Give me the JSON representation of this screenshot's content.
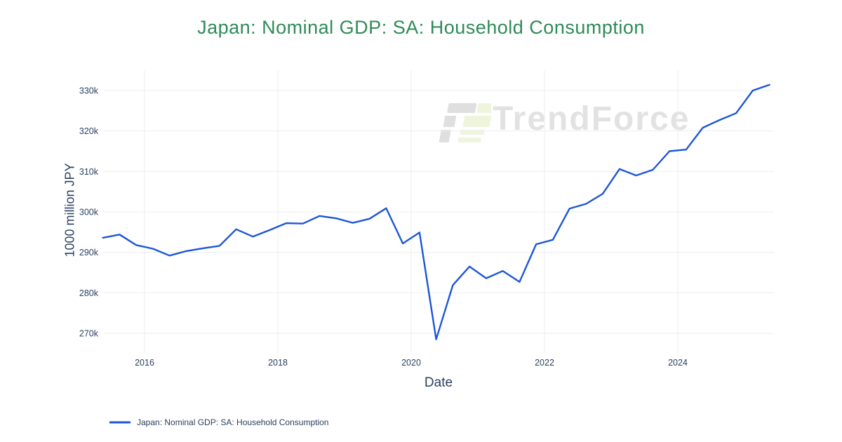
{
  "watermark": {
    "text": "TrendForce"
  },
  "chart_data": {
    "type": "line",
    "title": "Japan: Nominal GDP: SA: Household Consumption",
    "xlabel": "Date",
    "ylabel": "1000 million JPY",
    "legend_position": "bottom-left",
    "grid": true,
    "x_ticks": [
      {
        "year": 2016,
        "label": "2016"
      },
      {
        "year": 2018,
        "label": "2018"
      },
      {
        "year": 2020,
        "label": "2020"
      },
      {
        "year": 2022,
        "label": "2022"
      },
      {
        "year": 2024,
        "label": "2024"
      }
    ],
    "y_ticks": [
      {
        "value": 270000,
        "label": "270k"
      },
      {
        "value": 280000,
        "label": "280k"
      },
      {
        "value": 290000,
        "label": "290k"
      },
      {
        "value": 300000,
        "label": "300k"
      },
      {
        "value": 310000,
        "label": "310k"
      },
      {
        "value": 320000,
        "label": "320k"
      },
      {
        "value": 330000,
        "label": "330k"
      }
    ],
    "ylim": [
      265500,
      335000
    ],
    "series": [
      {
        "name": "Japan: Nominal GDP: SA: Household Consumption",
        "color": "#1c57d4",
        "categories": [
          "2015-Q2",
          "2015-Q3",
          "2015-Q4",
          "2016-Q1",
          "2016-Q2",
          "2016-Q3",
          "2016-Q4",
          "2017-Q1",
          "2017-Q2",
          "2017-Q3",
          "2017-Q4",
          "2018-Q1",
          "2018-Q2",
          "2018-Q3",
          "2018-Q4",
          "2019-Q1",
          "2019-Q2",
          "2019-Q3",
          "2019-Q4",
          "2020-Q1",
          "2020-Q2",
          "2020-Q3",
          "2020-Q4",
          "2021-Q1",
          "2021-Q2",
          "2021-Q3",
          "2021-Q4",
          "2022-Q1",
          "2022-Q2",
          "2022-Q3",
          "2022-Q4",
          "2023-Q1",
          "2023-Q2",
          "2023-Q3",
          "2023-Q4",
          "2024-Q1",
          "2024-Q2",
          "2024-Q3",
          "2024-Q4",
          "2025-Q1",
          "2025-Q2"
        ],
        "values": [
          293600,
          294400,
          291800,
          290900,
          289200,
          290300,
          291000,
          291600,
          295700,
          293900,
          295500,
          297200,
          297100,
          299000,
          298400,
          297300,
          298300,
          300900,
          292200,
          294900,
          268500,
          281900,
          286500,
          283600,
          285400,
          282700,
          292000,
          293100,
          300800,
          302000,
          304500,
          310600,
          309000,
          310400,
          315000,
          315400,
          320800,
          322700,
          324400,
          330000,
          331400
        ]
      }
    ]
  }
}
